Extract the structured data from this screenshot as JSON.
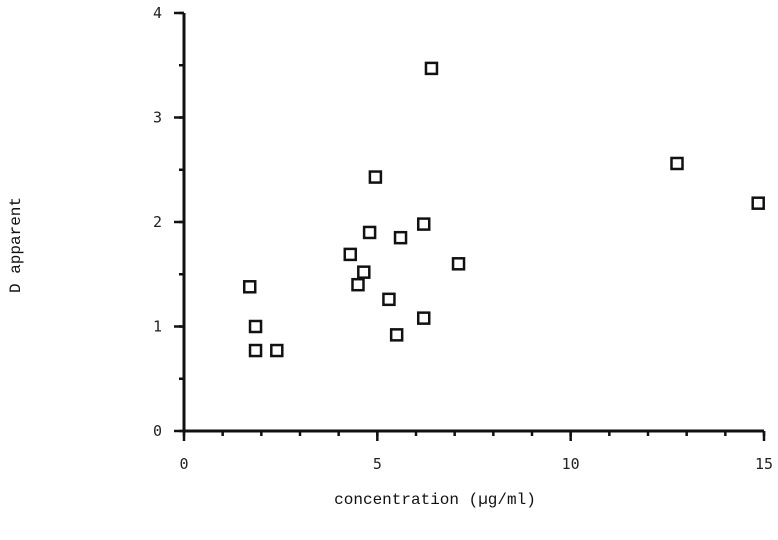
{
  "chart_data": {
    "type": "scatter",
    "title": "",
    "xlabel": "concentration (µg/ml)",
    "ylabel": "D apparent",
    "xlim": [
      0,
      15
    ],
    "ylim": [
      0,
      4
    ],
    "x_ticks": [
      0,
      5,
      10,
      15
    ],
    "y_ticks": [
      0,
      1,
      2,
      3,
      4
    ],
    "x_tick_labels": [
      "0",
      "5",
      "10",
      "15"
    ],
    "y_tick_labels": [
      "0",
      "1",
      "2",
      "3",
      "4"
    ],
    "x_minor_step": 1,
    "y_minor_step": 0.5,
    "grid": false,
    "legend": "none",
    "marker": "open-square",
    "marker_color": "#111111",
    "points": [
      {
        "x": 1.7,
        "y": 1.38
      },
      {
        "x": 1.85,
        "y": 1.0
      },
      {
        "x": 1.85,
        "y": 0.77
      },
      {
        "x": 2.4,
        "y": 0.77
      },
      {
        "x": 4.3,
        "y": 1.69
      },
      {
        "x": 4.5,
        "y": 1.4
      },
      {
        "x": 4.65,
        "y": 1.52
      },
      {
        "x": 4.8,
        "y": 1.9
      },
      {
        "x": 4.95,
        "y": 2.43
      },
      {
        "x": 5.3,
        "y": 1.26
      },
      {
        "x": 5.5,
        "y": 0.92
      },
      {
        "x": 5.6,
        "y": 1.85
      },
      {
        "x": 6.2,
        "y": 1.08
      },
      {
        "x": 6.2,
        "y": 1.98
      },
      {
        "x": 6.4,
        "y": 3.47
      },
      {
        "x": 7.1,
        "y": 1.6
      },
      {
        "x": 12.75,
        "y": 2.56
      },
      {
        "x": 14.85,
        "y": 2.18
      }
    ]
  }
}
